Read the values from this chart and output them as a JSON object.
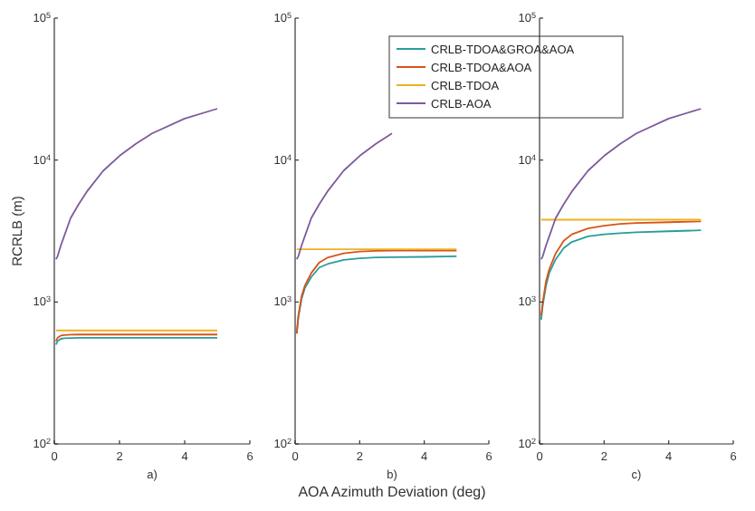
{
  "chart_data": [
    {
      "type": "line",
      "ylabel": "RCRLB (m)",
      "xlabel": "a)",
      "log": "y",
      "xlim": [
        0,
        6
      ],
      "xticks": [
        0,
        2,
        4,
        6
      ],
      "ylim": [
        100,
        100000
      ],
      "yticks": [
        {
          "value": 100,
          "label": "10$^{2}$"
        },
        {
          "value": 1000,
          "label": "10$^{3}$"
        },
        {
          "value": 10000,
          "label": "10$^{4}$"
        },
        {
          "value": 100000,
          "label": "10$^{5}$"
        }
      ],
      "grid": false,
      "legend": false,
      "x": [
        0.05,
        0.1,
        0.2,
        0.3,
        0.5,
        0.75,
        1,
        1.5,
        2,
        2.5,
        3,
        4,
        5
      ],
      "series": [
        {
          "color": "#2a9d9a",
          "values": [
            500,
            530,
            550,
            555,
            558,
            560,
            560,
            560,
            560,
            560,
            560,
            560,
            560
          ]
        },
        {
          "color": "#d95319",
          "values": [
            530,
            560,
            580,
            585,
            588,
            590,
            590,
            590,
            590,
            590,
            590,
            590,
            590
          ]
        },
        {
          "color": "#edb120",
          "values": [
            630,
            630,
            630,
            630,
            630,
            630,
            630,
            630,
            630,
            630,
            630,
            630,
            630
          ]
        },
        {
          "color": "#7e5a9b",
          "values": [
            2000,
            2100,
            2500,
            2900,
            3900,
            4900,
            6000,
            8400,
            10700,
            13000,
            15400,
            19600,
            23000
          ]
        }
      ]
    },
    {
      "type": "line",
      "xlabel": "b)",
      "annotations": [
        "AOA Azimuth Deviation (deg)"
      ],
      "log": "y",
      "xlim": [
        0,
        6
      ],
      "xticks": [
        0,
        2,
        4,
        6
      ],
      "ylim": [
        100,
        100000
      ],
      "yticks": [
        {
          "value": 100,
          "label": "10$^{2}$"
        },
        {
          "value": 1000,
          "label": "10$^{3}$"
        },
        {
          "value": 10000,
          "label": "10$^{4}$"
        },
        {
          "value": 100000,
          "label": "10$^{5}$"
        }
      ],
      "grid": false,
      "legend": "top right",
      "x": [
        0.05,
        0.1,
        0.2,
        0.3,
        0.5,
        0.75,
        1,
        1.5,
        2,
        2.5,
        3,
        4,
        5
      ],
      "series": [
        {
          "name": "CRLB-TDOA&GROA&AOA",
          "color": "#2a9d9a",
          "values": [
            600,
            780,
            1050,
            1250,
            1500,
            1750,
            1850,
            1980,
            2030,
            2060,
            2070,
            2080,
            2100
          ]
        },
        {
          "name": "CRLB-TDOA&AOA",
          "color": "#d95319",
          "values": [
            600,
            800,
            1100,
            1300,
            1600,
            1900,
            2050,
            2200,
            2270,
            2290,
            2300,
            2300,
            2300
          ]
        },
        {
          "name": "CRLB-TDOA",
          "color": "#edb120",
          "values": [
            2350,
            2350,
            2350,
            2350,
            2350,
            2350,
            2350,
            2350,
            2350,
            2350,
            2350,
            2350,
            2350
          ]
        },
        {
          "name": "CRLB-AOA",
          "color": "#7e5a9b",
          "values": [
            2000,
            2100,
            2500,
            2900,
            3900,
            4900,
            6000,
            8400,
            10700,
            13000,
            15400,
            null,
            null
          ]
        }
      ]
    },
    {
      "type": "line",
      "xlabel": "c)",
      "log": "y",
      "xlim": [
        0,
        6
      ],
      "xticks": [
        0,
        2,
        4,
        6
      ],
      "ylim": [
        100,
        100000
      ],
      "yticks": [
        {
          "value": 100,
          "label": "10$^{2}$"
        },
        {
          "value": 1000,
          "label": "10$^{3}$"
        },
        {
          "value": 10000,
          "label": "10$^{4}$"
        },
        {
          "value": 100000,
          "label": "10$^{5}$"
        }
      ],
      "grid": false,
      "legend": false,
      "x": [
        0.05,
        0.1,
        0.2,
        0.3,
        0.5,
        0.75,
        1,
        1.5,
        2,
        2.5,
        3,
        4,
        5
      ],
      "series": [
        {
          "color": "#2a9d9a",
          "values": [
            750,
            950,
            1300,
            1600,
            2000,
            2400,
            2650,
            2900,
            3000,
            3050,
            3100,
            3150,
            3200
          ]
        },
        {
          "color": "#d95319",
          "values": [
            800,
            1000,
            1400,
            1700,
            2200,
            2700,
            3000,
            3300,
            3450,
            3550,
            3600,
            3650,
            3700
          ]
        },
        {
          "color": "#edb120",
          "values": [
            3800,
            3800,
            3800,
            3800,
            3800,
            3800,
            3800,
            3800,
            3800,
            3800,
            3800,
            3800,
            3800
          ]
        },
        {
          "color": "#7e5a9b",
          "values": [
            2000,
            2100,
            2500,
            2900,
            3900,
            4900,
            6000,
            8400,
            10700,
            13000,
            15400,
            19600,
            23000
          ]
        }
      ]
    }
  ]
}
